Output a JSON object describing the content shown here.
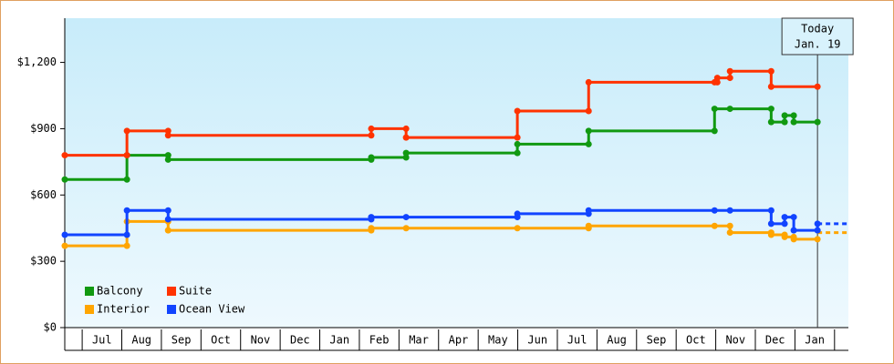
{
  "chart_data": {
    "type": "step-line",
    "xlim": [
      -0.44,
      19.35
    ],
    "ylim": [
      0,
      1400
    ],
    "yticks": [
      {
        "value": 0,
        "label": "$0"
      },
      {
        "value": 300,
        "label": "$300"
      },
      {
        "value": 600,
        "label": "$600"
      },
      {
        "value": 900,
        "label": "$900"
      },
      {
        "value": 1200,
        "label": "$1,200"
      }
    ],
    "categories": [
      "Jul",
      "Aug",
      "Sep",
      "Oct",
      "Nov",
      "Dec",
      "Jan",
      "Feb",
      "Mar",
      "Apr",
      "May",
      "Jun",
      "Jul",
      "Aug",
      "Sep",
      "Oct",
      "Nov",
      "Dec",
      "Jan"
    ],
    "annotation": {
      "x": 18.57,
      "lines": [
        "Today",
        "Jan. 19"
      ]
    },
    "legend": "bottom-left",
    "series": [
      {
        "name": "Balcony",
        "color": "#119911",
        "x": [
          -0.44,
          1.13,
          1.13,
          2.17,
          2.17,
          7.3,
          7.3,
          8.18,
          8.18,
          10.99,
          10.99,
          12.79,
          12.79,
          15.97,
          15.97,
          16.36,
          17.4,
          17.4,
          17.74,
          17.74,
          17.97,
          17.97,
          18.57
        ],
        "values": [
          670,
          670,
          780,
          780,
          760,
          760,
          770,
          770,
          790,
          790,
          830,
          830,
          890,
          890,
          990,
          990,
          990,
          930,
          930,
          960,
          960,
          930,
          930
        ]
      },
      {
        "name": "Suite",
        "color": "#ff3300",
        "x": [
          -0.44,
          1.13,
          1.13,
          2.17,
          2.17,
          7.3,
          7.3,
          8.18,
          8.18,
          10.99,
          10.99,
          12.79,
          12.79,
          15.97,
          16.04,
          16.04,
          16.36,
          16.36,
          17.4,
          17.4,
          18.57
        ],
        "values": [
          780,
          780,
          890,
          890,
          870,
          870,
          900,
          900,
          860,
          860,
          980,
          980,
          1110,
          1110,
          1110,
          1130,
          1130,
          1160,
          1160,
          1090,
          1090
        ]
      },
      {
        "name": "Interior",
        "color": "#ffa500",
        "x": [
          -0.44,
          1.13,
          1.13,
          2.17,
          2.17,
          7.3,
          7.3,
          8.18,
          10.99,
          12.79,
          12.79,
          15.97,
          16.36,
          16.36,
          17.4,
          17.4,
          17.74,
          17.74,
          17.97,
          17.97,
          18.57
        ],
        "values": [
          370,
          370,
          480,
          480,
          440,
          440,
          450,
          450,
          450,
          450,
          460,
          460,
          460,
          430,
          430,
          420,
          420,
          410,
          410,
          400,
          400
        ],
        "forecast": 430
      },
      {
        "name": "Ocean View",
        "color": "#1144ff",
        "x": [
          -0.44,
          1.13,
          1.13,
          2.17,
          2.17,
          7.3,
          7.3,
          8.18,
          10.99,
          10.99,
          12.79,
          12.79,
          15.97,
          16.36,
          17.4,
          17.4,
          17.74,
          17.74,
          17.97,
          17.97,
          18.57,
          18.57
        ],
        "values": [
          420,
          420,
          530,
          530,
          490,
          490,
          500,
          500,
          500,
          515,
          515,
          530,
          530,
          530,
          530,
          470,
          470,
          500,
          500,
          440,
          440,
          470
        ],
        "forecast": 470
      }
    ]
  }
}
